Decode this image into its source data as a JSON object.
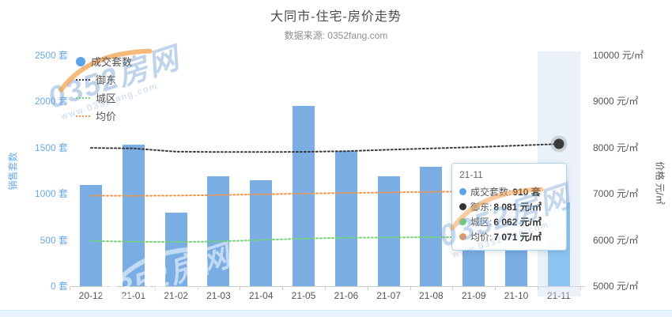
{
  "header": {
    "title": "大同市-住宅-房价走势",
    "subtitle": "数据来源: 0352fang.com"
  },
  "legend": {
    "items": [
      {
        "label": "成交套数",
        "type": "bar",
        "color": "#5ba3e8"
      },
      {
        "label": "御东",
        "type": "line",
        "color": "#3a3a3a"
      },
      {
        "label": "城区",
        "type": "line",
        "color": "#71d671"
      },
      {
        "label": "均价",
        "type": "line",
        "color": "#f79447"
      }
    ]
  },
  "chart_data": {
    "type": "bar+line",
    "categories": [
      "20-12",
      "21-01",
      "21-02",
      "21-03",
      "21-04",
      "21-05",
      "21-06",
      "21-07",
      "21-08",
      "21-09",
      "21-10",
      "21-11"
    ],
    "series": [
      {
        "name": "成交套数",
        "type": "bar",
        "unit": "套",
        "color": "#79ade4",
        "highlight_color": "#8dc5f2",
        "values": [
          1095,
          1530,
          795,
          1190,
          1150,
          1950,
          1465,
          1190,
          1295,
          1000,
          980,
          910
        ]
      },
      {
        "name": "御东",
        "type": "line",
        "unit": "元/㎡",
        "color": "#3a3a3a",
        "values": [
          7995,
          7985,
          7915,
          7905,
          7905,
          7910,
          7925,
          7955,
          7985,
          8010,
          8045,
          8081
        ]
      },
      {
        "name": "城区",
        "type": "line",
        "unit": "元/㎡",
        "color": "#71d671",
        "values": [
          5980,
          5962,
          5955,
          5970,
          6000,
          6030,
          6050,
          6055,
          6058,
          6060,
          6060,
          6062
        ]
      },
      {
        "name": "均价",
        "type": "line",
        "unit": "元/㎡",
        "color": "#f79447",
        "values": [
          6960,
          6958,
          6962,
          6975,
          6990,
          7005,
          7018,
          7030,
          7042,
          7052,
          7062,
          7071
        ]
      }
    ],
    "y_left": {
      "name": "销售套数",
      "min": 0,
      "max": 2500,
      "tick_step": 500,
      "ticks": [
        "0 套",
        "500 套",
        "1000 套",
        "1500 套",
        "2000 套",
        "2500 套"
      ],
      "color": "#6aa9e6"
    },
    "y_right": {
      "name": "价格 元/㎡",
      "min": 5000,
      "max": 10000,
      "tick_step": 1000,
      "ticks": [
        "5000 元/㎡",
        "6000 元/㎡",
        "7000 元/㎡",
        "8000 元/㎡",
        "9000 元/㎡",
        "10000 元/㎡"
      ],
      "color": "#555555"
    },
    "highlighted_category": "21-11",
    "grid": false,
    "legend_position": "top-left"
  },
  "tooltip": {
    "title": "21-11",
    "rows": [
      {
        "label": "成交套数",
        "value": "910 套",
        "color": "#5ba3e8"
      },
      {
        "label": "御东",
        "value": "8 081 元/㎡",
        "color": "#333333"
      },
      {
        "label": "城区",
        "value": "6 062 元/㎡",
        "color": "#5fd65f"
      },
      {
        "label": "均价",
        "value": "7 071 元/㎡",
        "color": "#f79447"
      }
    ]
  },
  "watermark": {
    "brand": "0352房网",
    "url": "www.0352fang.com"
  }
}
